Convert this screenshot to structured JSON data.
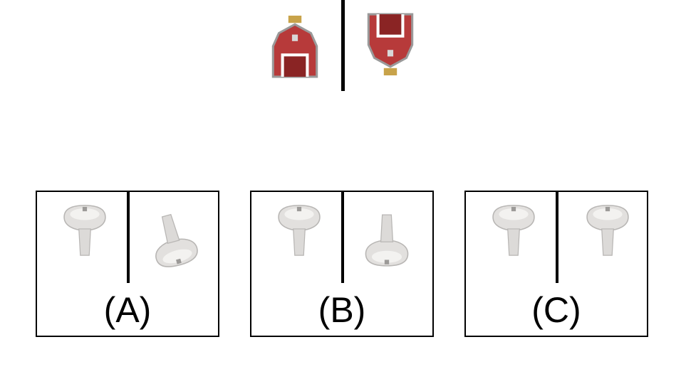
{
  "question": {
    "example_pair": {
      "left_icon": "barn-upright-icon",
      "right_icon": "barn-flipped-icon"
    }
  },
  "options": [
    {
      "label": "(A)",
      "left_icon": "sink-upright-icon",
      "right_icon": "sink-rotated-icon"
    },
    {
      "label": "(B)",
      "left_icon": "sink-upright-icon",
      "right_icon": "sink-flipped-icon"
    },
    {
      "label": "(C)",
      "left_icon": "sink-upright-icon",
      "right_icon": "sink-mirrored-icon"
    }
  ]
}
